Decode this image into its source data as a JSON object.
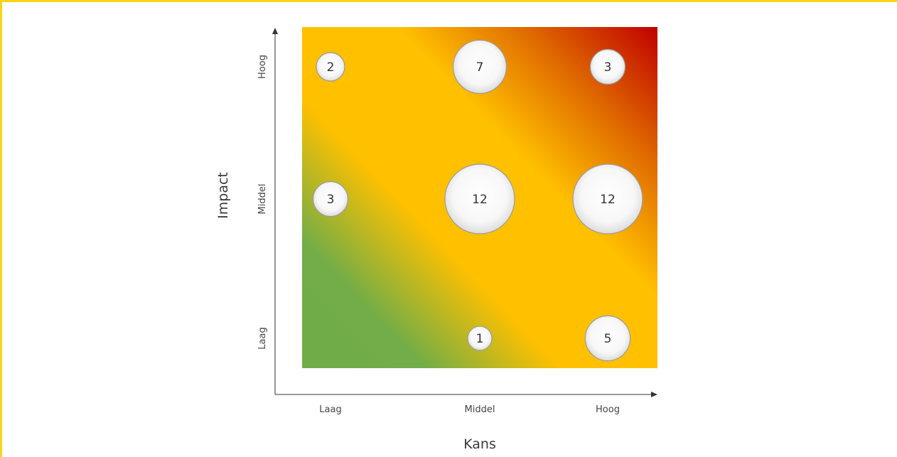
{
  "chart_data": {
    "type": "scatter",
    "xlabel": "Kans",
    "ylabel": "Impact",
    "x_categories": [
      "Laag",
      "Middel",
      "Hoog"
    ],
    "y_categories": [
      "Laag",
      "Middel",
      "Hoog"
    ],
    "points": [
      {
        "x": "Laag",
        "y": "Hoog",
        "value": 2
      },
      {
        "x": "Middel",
        "y": "Hoog",
        "value": 7
      },
      {
        "x": "Hoog",
        "y": "Hoog",
        "value": 3
      },
      {
        "x": "Laag",
        "y": "Middel",
        "value": 3
      },
      {
        "x": "Middel",
        "y": "Middel",
        "value": 12
      },
      {
        "x": "Hoog",
        "y": "Middel",
        "value": 12
      },
      {
        "x": "Middel",
        "y": "Laag",
        "value": 1
      },
      {
        "x": "Hoog",
        "y": "Laag",
        "value": 5
      }
    ],
    "background": "risk gradient green to yellow to red",
    "colors": {
      "low": "#70ad47",
      "mid": "#ffc000",
      "high": "#c00000",
      "frame": "#f7d417"
    },
    "legend": "none",
    "grid": false
  }
}
